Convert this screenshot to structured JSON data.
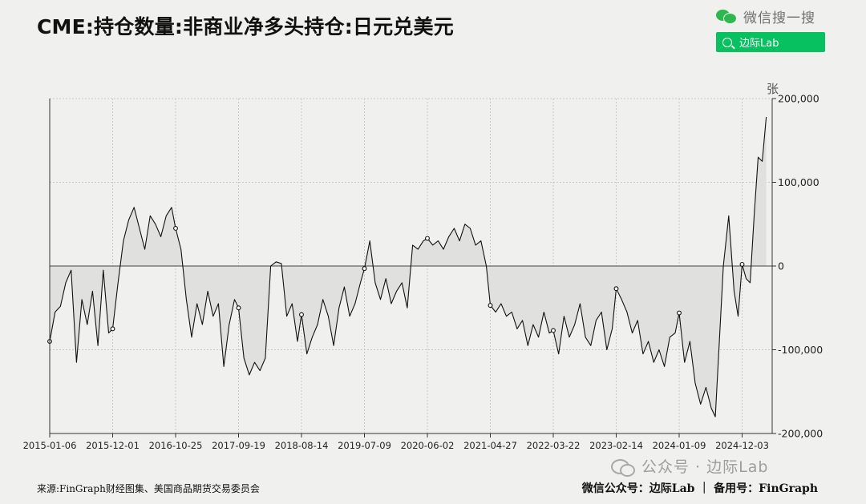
{
  "title": "CME:持仓数量:非商业净多头持仓:日元兑美元",
  "brand": {
    "name": "微信搜一搜",
    "search_label": "边际Lab",
    "icon": "wechat-icon",
    "accent": "#07c160"
  },
  "footer": {
    "source": "来源:FinGraph财经图集、美国商品期货交易委员会",
    "account": "微信公众号：边际Lab ｜ 备用号：FinGraph"
  },
  "watermark": "公众号 · 边际Lab",
  "chart_data": {
    "type": "area",
    "title": "CME:持仓数量:非商业净多头持仓:日元兑美元",
    "xlabel": "",
    "ylabel": "张",
    "y_axis_position": "right",
    "ylim": [
      -200000,
      200000
    ],
    "yticks": [
      200000,
      100000,
      0,
      -100000,
      -200000
    ],
    "ytick_labels": [
      "200,000",
      "100,000",
      "0",
      "-100,000",
      "-200,000"
    ],
    "xticks": [
      "2015-01-06",
      "2015-12-01",
      "2016-10-25",
      "2017-09-19",
      "2018-08-14",
      "2019-07-09",
      "2020-06-02",
      "2021-04-27",
      "2022-03-22",
      "2023-02-14",
      "2024-01-09",
      "2024-12-03"
    ],
    "grid": true,
    "line_color": "#111111",
    "fill_color": "#e0e0df",
    "marker_points": [
      {
        "date": "2015-01-06",
        "value": -90000
      },
      {
        "date": "2015-12-01",
        "value": -75000
      },
      {
        "date": "2016-10-25",
        "value": 45000
      },
      {
        "date": "2017-09-19",
        "value": -50000
      },
      {
        "date": "2018-08-14",
        "value": -58000
      },
      {
        "date": "2019-07-09",
        "value": -3000
      },
      {
        "date": "2020-06-02",
        "value": 33000
      },
      {
        "date": "2021-04-27",
        "value": -47000
      },
      {
        "date": "2022-03-22",
        "value": -77000
      },
      {
        "date": "2023-02-14",
        "value": -27000
      },
      {
        "date": "2024-01-09",
        "value": -56000
      },
      {
        "date": "2024-12-03",
        "value": 2000
      }
    ],
    "series": [
      {
        "x": [
          "2015-01-06",
          "2015-02-03",
          "2015-03-03",
          "2015-03-31",
          "2015-04-28",
          "2015-05-26",
          "2015-06-23",
          "2015-07-21",
          "2015-08-18",
          "2015-09-15",
          "2015-10-13",
          "2015-11-10",
          "2015-12-01",
          "2015-12-29",
          "2016-01-26",
          "2016-02-23",
          "2016-03-22",
          "2016-04-19",
          "2016-05-17",
          "2016-06-14",
          "2016-07-12",
          "2016-08-09",
          "2016-09-06",
          "2016-10-04",
          "2016-10-25",
          "2016-11-22",
          "2016-12-20",
          "2017-01-17",
          "2017-02-14",
          "2017-03-14",
          "2017-04-11",
          "2017-05-09",
          "2017-06-06",
          "2017-07-04",
          "2017-08-01",
          "2017-08-29",
          "2017-09-19",
          "2017-10-17",
          "2017-11-14",
          "2017-12-12",
          "2018-01-09",
          "2018-02-06",
          "2018-03-06",
          "2018-04-03",
          "2018-05-01",
          "2018-05-29",
          "2018-06-26",
          "2018-07-24",
          "2018-08-14",
          "2018-09-11",
          "2018-10-09",
          "2018-11-06",
          "2018-12-04",
          "2019-01-01",
          "2019-01-29",
          "2019-02-26",
          "2019-03-26",
          "2019-04-23",
          "2019-05-21",
          "2019-06-18",
          "2019-07-09",
          "2019-08-06",
          "2019-09-03",
          "2019-10-01",
          "2019-10-29",
          "2019-11-26",
          "2019-12-24",
          "2020-01-21",
          "2020-02-18",
          "2020-03-17",
          "2020-04-14",
          "2020-05-12",
          "2020-06-02",
          "2020-06-30",
          "2020-07-28",
          "2020-08-25",
          "2020-09-22",
          "2020-10-20",
          "2020-11-17",
          "2020-12-15",
          "2021-01-12",
          "2021-02-09",
          "2021-03-09",
          "2021-04-06",
          "2021-04-27",
          "2021-05-25",
          "2021-06-22",
          "2021-07-20",
          "2021-08-17",
          "2021-09-14",
          "2021-10-12",
          "2021-11-09",
          "2021-12-07",
          "2022-01-04",
          "2022-02-01",
          "2022-03-01",
          "2022-03-22",
          "2022-04-19",
          "2022-05-17",
          "2022-06-14",
          "2022-07-12",
          "2022-08-09",
          "2022-09-06",
          "2022-10-04",
          "2022-11-01",
          "2022-11-29",
          "2022-12-27",
          "2023-01-24",
          "2023-02-14",
          "2023-03-14",
          "2023-04-11",
          "2023-05-09",
          "2023-06-06",
          "2023-07-04",
          "2023-08-01",
          "2023-08-29",
          "2023-09-26",
          "2023-10-24",
          "2023-11-21",
          "2023-12-19",
          "2024-01-09",
          "2024-02-06",
          "2024-03-05",
          "2024-04-02",
          "2024-04-30",
          "2024-05-28",
          "2024-06-25",
          "2024-07-16",
          "2024-08-06",
          "2024-08-27",
          "2024-09-24",
          "2024-10-22",
          "2024-11-12",
          "2024-12-03",
          "2024-12-24",
          "2025-01-14",
          "2025-02-04",
          "2025-02-25",
          "2025-03-18",
          "2025-04-08"
        ],
        "values": [
          -90000,
          -55000,
          -48000,
          -20000,
          -5000,
          -115000,
          -40000,
          -70000,
          -30000,
          -95000,
          -5000,
          -80000,
          -75000,
          -20000,
          30000,
          55000,
          70000,
          45000,
          20000,
          60000,
          50000,
          35000,
          60000,
          70000,
          45000,
          20000,
          -40000,
          -85000,
          -45000,
          -70000,
          -30000,
          -60000,
          -45000,
          -120000,
          -70000,
          -40000,
          -50000,
          -110000,
          -130000,
          -115000,
          -125000,
          -110000,
          0,
          5000,
          3000,
          -60000,
          -45000,
          -90000,
          -58000,
          -105000,
          -85000,
          -70000,
          -40000,
          -60000,
          -95000,
          -50000,
          -25000,
          -60000,
          -45000,
          -20000,
          -3000,
          30000,
          -20000,
          -40000,
          -15000,
          -45000,
          -30000,
          -20000,
          -50000,
          25000,
          20000,
          30000,
          33000,
          25000,
          30000,
          20000,
          35000,
          45000,
          30000,
          50000,
          45000,
          25000,
          30000,
          0,
          -47000,
          -55000,
          -45000,
          -60000,
          -55000,
          -75000,
          -65000,
          -95000,
          -70000,
          -85000,
          -55000,
          -80000,
          -77000,
          -105000,
          -60000,
          -85000,
          -70000,
          -45000,
          -85000,
          -95000,
          -65000,
          -55000,
          -100000,
          -75000,
          -27000,
          -40000,
          -55000,
          -80000,
          -65000,
          -105000,
          -90000,
          -115000,
          -100000,
          -120000,
          -85000,
          -80000,
          -56000,
          -115000,
          -90000,
          -140000,
          -165000,
          -145000,
          -170000,
          -180000,
          -90000,
          0,
          60000,
          -30000,
          -60000,
          2000,
          -15000,
          -20000,
          60000,
          130000,
          125000,
          178000
        ]
      }
    ]
  }
}
